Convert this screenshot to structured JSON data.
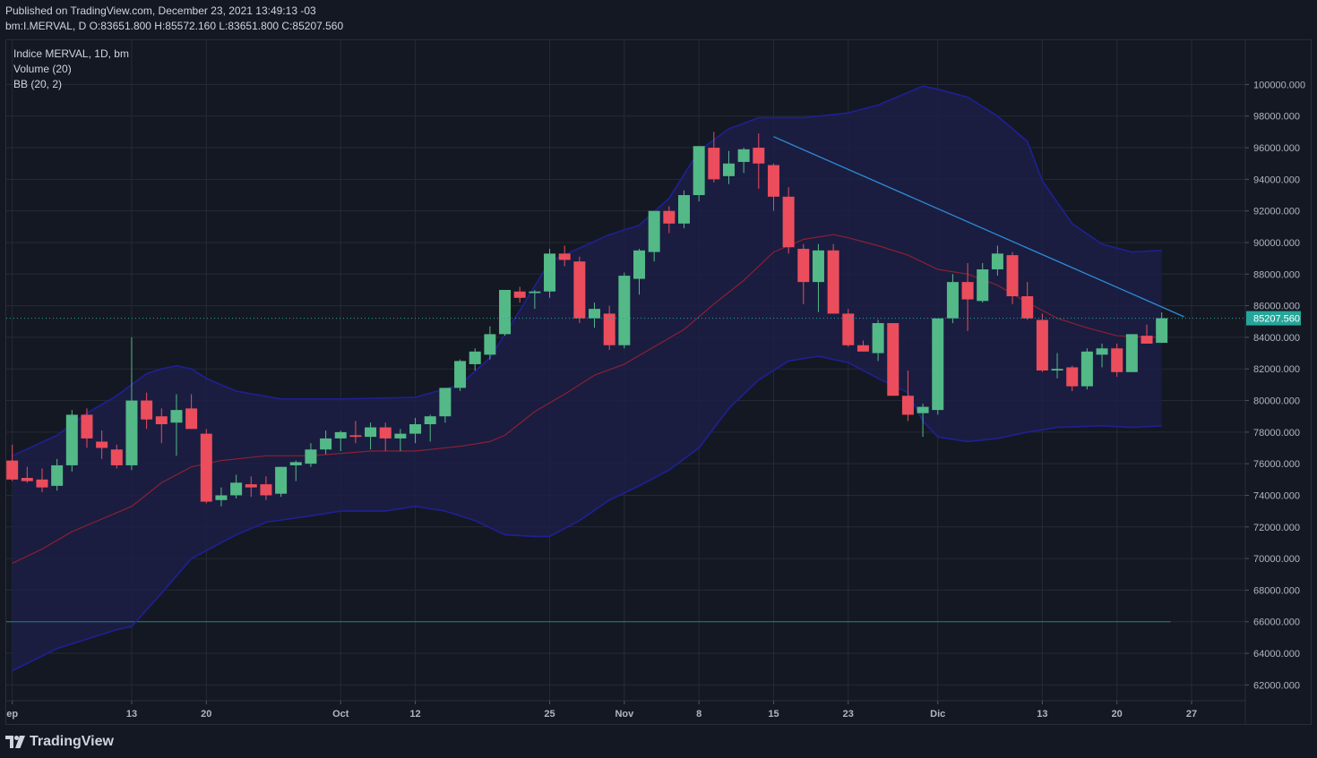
{
  "header": {
    "published": "Published on TradingView.com, December 23, 2021 13:49:13 -03",
    "ohlc": "bm:I.MERVAL, D O:83651.800 H:85572.160 L:83651.800 C:85207.560"
  },
  "legend": [
    "Indice MERVAL, 1D, bm",
    "Volume (20)",
    "BB (20, 2)"
  ],
  "footer": {
    "brand": "TradingView"
  },
  "colors": {
    "background": "#141823",
    "grid": "#262a35",
    "up": "#53b987",
    "down": "#eb4d5c",
    "bb_band": "#1f2094",
    "bb_basis": "#8c1f33",
    "bb_fill": "#1b1f45",
    "trendline": "#2d8bd6",
    "last_price_tag": "#26a69a",
    "axis_text": "#b2b5be"
  },
  "chart_data": {
    "type": "candlestick",
    "title": "Indice MERVAL, 1D, bm",
    "y_range": [
      61000,
      102800
    ],
    "y_ticks": [
      "62000.000",
      "64000.000",
      "66000.000",
      "68000.000",
      "70000.000",
      "72000.000",
      "74000.000",
      "76000.000",
      "78000.000",
      "80000.000",
      "82000.000",
      "84000.000",
      "86000.000",
      "88000.000",
      "90000.000",
      "92000.000",
      "94000.000",
      "96000.000",
      "98000.000",
      "100000.000"
    ],
    "x_ticks": [
      {
        "label": "ep",
        "index": 0
      },
      {
        "label": "13",
        "index": 8
      },
      {
        "label": "20",
        "index": 13
      },
      {
        "label": "Oct",
        "index": 22
      },
      {
        "label": "12",
        "index": 27
      },
      {
        "label": "25",
        "index": 36
      },
      {
        "label": "Nov",
        "index": 41
      },
      {
        "label": "8",
        "index": 46
      },
      {
        "label": "15",
        "index": 51
      },
      {
        "label": "23",
        "index": 56
      },
      {
        "label": "Dic",
        "index": 62
      },
      {
        "label": "13",
        "index": 69
      },
      {
        "label": "20",
        "index": 74
      },
      {
        "label": "27",
        "index": 79
      }
    ],
    "x_index_range": [
      -0.4,
      82.6
    ],
    "last_price": "85207.560",
    "last_price_value": 85207.56,
    "horizontal_line": 66000,
    "trendline": [
      [
        51,
        96700
      ],
      [
        78.5,
        85300
      ]
    ],
    "candles": [
      [
        76200,
        77200,
        74900,
        75000
      ],
      [
        75100,
        75800,
        74800,
        74900
      ],
      [
        75000,
        75700,
        74200,
        74500
      ],
      [
        74600,
        76300,
        74300,
        75900
      ],
      [
        75900,
        79400,
        75500,
        79100
      ],
      [
        79100,
        79500,
        77000,
        77600
      ],
      [
        77400,
        78100,
        76300,
        77000
      ],
      [
        76900,
        77200,
        75700,
        75900
      ],
      [
        75900,
        84000,
        75600,
        80000
      ],
      [
        80000,
        80500,
        78200,
        78800
      ],
      [
        79000,
        79500,
        77300,
        78500
      ],
      [
        78600,
        80400,
        76500,
        79400
      ],
      [
        79500,
        80400,
        78200,
        78200
      ],
      [
        77900,
        78200,
        73500,
        73600
      ],
      [
        73700,
        74500,
        73300,
        74000
      ],
      [
        74000,
        75300,
        73800,
        74800
      ],
      [
        74700,
        75200,
        73900,
        74500
      ],
      [
        74700,
        75200,
        73700,
        74000
      ],
      [
        74100,
        75800,
        73900,
        75800
      ],
      [
        75900,
        76200,
        74900,
        76100
      ],
      [
        76000,
        77300,
        75800,
        76900
      ],
      [
        76900,
        78100,
        76600,
        77600
      ],
      [
        77600,
        78100,
        76800,
        78000
      ],
      [
        77800,
        78700,
        77300,
        77700
      ],
      [
        77700,
        78600,
        76900,
        78300
      ],
      [
        78300,
        78600,
        76800,
        77600
      ],
      [
        77600,
        78200,
        76800,
        77900
      ],
      [
        77900,
        78900,
        77300,
        78500
      ],
      [
        78500,
        79100,
        77400,
        79000
      ],
      [
        79000,
        80600,
        78600,
        80800
      ],
      [
        80800,
        82600,
        80600,
        82500
      ],
      [
        82300,
        83300,
        81900,
        83100
      ],
      [
        82900,
        84700,
        82600,
        84200
      ],
      [
        84200,
        87000,
        84100,
        87000
      ],
      [
        86900,
        87200,
        86200,
        86500
      ],
      [
        86800,
        87000,
        85800,
        86900
      ],
      [
        86900,
        89600,
        86500,
        89300
      ],
      [
        89300,
        89800,
        88500,
        88900
      ],
      [
        88800,
        89100,
        84900,
        85200
      ],
      [
        85200,
        86200,
        84600,
        85800
      ],
      [
        85500,
        86000,
        83200,
        83500
      ],
      [
        83500,
        88100,
        83300,
        87900
      ],
      [
        87700,
        89600,
        86700,
        89500
      ],
      [
        89400,
        92000,
        88800,
        92000
      ],
      [
        92000,
        92300,
        90600,
        91200
      ],
      [
        91200,
        93300,
        90900,
        93000
      ],
      [
        93000,
        96100,
        92600,
        96100
      ],
      [
        96000,
        97000,
        93800,
        94000
      ],
      [
        94200,
        95800,
        93700,
        95000
      ],
      [
        95100,
        96000,
        94400,
        95900
      ],
      [
        96000,
        96900,
        93400,
        95000
      ],
      [
        94900,
        95000,
        92000,
        92900
      ],
      [
        92900,
        93500,
        89300,
        89700
      ],
      [
        89600,
        89900,
        86100,
        87500
      ],
      [
        87500,
        89900,
        85600,
        89500
      ],
      [
        89500,
        89900,
        85500,
        85500
      ],
      [
        85500,
        85800,
        83400,
        83500
      ],
      [
        83500,
        83800,
        83100,
        83100
      ],
      [
        83000,
        85100,
        82500,
        84900
      ],
      [
        84900,
        84900,
        80300,
        80300
      ],
      [
        80300,
        81900,
        78700,
        79100
      ],
      [
        79200,
        79800,
        77700,
        79600
      ],
      [
        79400,
        85100,
        79100,
        85200
      ],
      [
        85200,
        88000,
        84900,
        87500
      ],
      [
        87500,
        88700,
        84400,
        86400
      ],
      [
        86300,
        88700,
        86200,
        88300
      ],
      [
        88300,
        89800,
        87900,
        89300
      ],
      [
        89200,
        89400,
        86100,
        86600
      ],
      [
        86600,
        87500,
        85100,
        85200
      ],
      [
        85100,
        85500,
        81800,
        81900
      ],
      [
        81900,
        83000,
        81400,
        82000
      ],
      [
        82100,
        82200,
        80600,
        80900
      ],
      [
        80900,
        83300,
        80700,
        83100
      ],
      [
        82900,
        83600,
        82100,
        83300
      ],
      [
        83300,
        83600,
        81500,
        81800
      ],
      [
        81800,
        84100,
        81800,
        84200
      ],
      [
        84100,
        84800,
        83700,
        83600
      ],
      [
        83651.8,
        85572.16,
        83651.8,
        85207.56
      ]
    ],
    "bb_upper": [
      [
        0,
        76500
      ],
      [
        3,
        77800
      ],
      [
        5,
        79200
      ],
      [
        7,
        80300
      ],
      [
        9,
        81700
      ],
      [
        10,
        82000
      ],
      [
        11,
        82200
      ],
      [
        12,
        82000
      ],
      [
        13,
        81400
      ],
      [
        15,
        80600
      ],
      [
        18,
        80100
      ],
      [
        22,
        80100
      ],
      [
        27,
        80200
      ],
      [
        30,
        81000
      ],
      [
        32,
        82700
      ],
      [
        34,
        85700
      ],
      [
        36,
        88800
      ],
      [
        40,
        90500
      ],
      [
        42,
        91100
      ],
      [
        44,
        92800
      ],
      [
        46,
        95800
      ],
      [
        48,
        97200
      ],
      [
        50,
        97900
      ],
      [
        53,
        97900
      ],
      [
        56,
        98200
      ],
      [
        58,
        98700
      ],
      [
        60,
        99500
      ],
      [
        61,
        99900
      ],
      [
        62,
        99700
      ],
      [
        64,
        99200
      ],
      [
        66,
        98000
      ],
      [
        68,
        96400
      ],
      [
        69,
        93900
      ],
      [
        71,
        91200
      ],
      [
        73,
        89900
      ],
      [
        75,
        89400
      ],
      [
        77,
        89500
      ]
    ],
    "bb_lower": [
      [
        0,
        62900
      ],
      [
        3,
        64300
      ],
      [
        5,
        64900
      ],
      [
        7,
        65500
      ],
      [
        8,
        65700
      ],
      [
        10,
        67800
      ],
      [
        12,
        70000
      ],
      [
        13,
        70500
      ],
      [
        15,
        71500
      ],
      [
        17,
        72300
      ],
      [
        20,
        72700
      ],
      [
        22,
        73000
      ],
      [
        25,
        73000
      ],
      [
        27,
        73300
      ],
      [
        29,
        73000
      ],
      [
        31,
        72400
      ],
      [
        33,
        71500
      ],
      [
        35,
        71400
      ],
      [
        36,
        71400
      ],
      [
        38,
        72400
      ],
      [
        40,
        73700
      ],
      [
        42,
        74600
      ],
      [
        44,
        75600
      ],
      [
        46,
        77000
      ],
      [
        48,
        79500
      ],
      [
        50,
        81300
      ],
      [
        52,
        82500
      ],
      [
        54,
        82800
      ],
      [
        56,
        82400
      ],
      [
        58,
        81400
      ],
      [
        60,
        80500
      ],
      [
        61,
        78700
      ],
      [
        62,
        77700
      ],
      [
        64,
        77400
      ],
      [
        66,
        77600
      ],
      [
        68,
        78000
      ],
      [
        70,
        78300
      ],
      [
        73,
        78400
      ],
      [
        75,
        78300
      ],
      [
        77,
        78400
      ]
    ],
    "bb_basis": [
      [
        0,
        69700
      ],
      [
        2,
        70600
      ],
      [
        4,
        71700
      ],
      [
        6,
        72500
      ],
      [
        8,
        73300
      ],
      [
        10,
        74800
      ],
      [
        12,
        75800
      ],
      [
        14,
        76200
      ],
      [
        17,
        76500
      ],
      [
        20,
        76500
      ],
      [
        24,
        76800
      ],
      [
        27,
        76800
      ],
      [
        30,
        77100
      ],
      [
        32,
        77400
      ],
      [
        33,
        77800
      ],
      [
        35,
        79300
      ],
      [
        37,
        80400
      ],
      [
        39,
        81600
      ],
      [
        41,
        82300
      ],
      [
        43,
        83400
      ],
      [
        45,
        84500
      ],
      [
        47,
        86100
      ],
      [
        49,
        87600
      ],
      [
        51,
        89400
      ],
      [
        53,
        90200
      ],
      [
        55,
        90500
      ],
      [
        56,
        90300
      ],
      [
        58,
        89800
      ],
      [
        60,
        89200
      ],
      [
        62,
        88300
      ],
      [
        64,
        88000
      ],
      [
        66,
        87300
      ],
      [
        68,
        86200
      ],
      [
        70,
        85200
      ],
      [
        72,
        84600
      ],
      [
        74,
        84100
      ],
      [
        76,
        84000
      ],
      [
        77,
        84000
      ]
    ]
  }
}
